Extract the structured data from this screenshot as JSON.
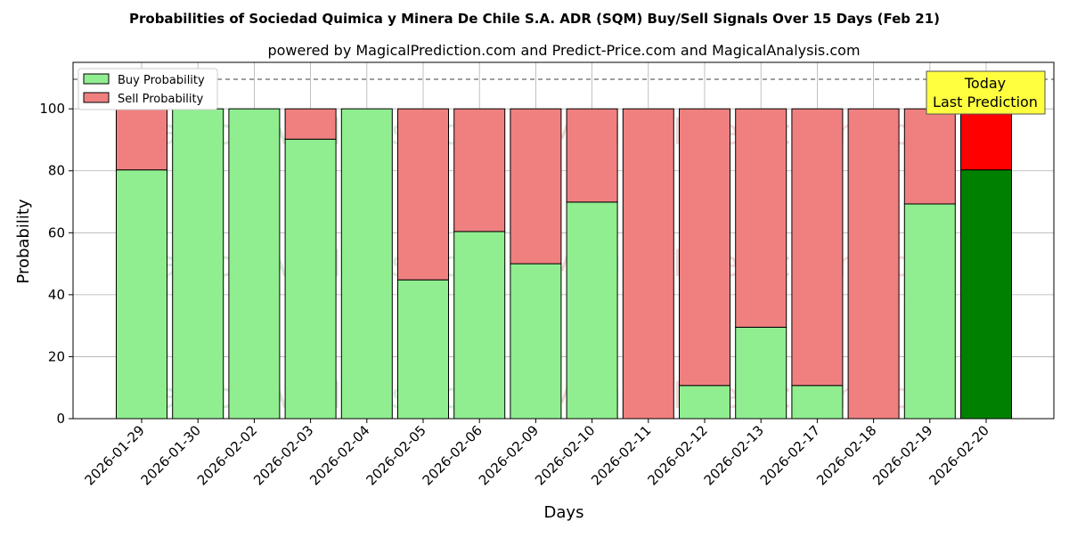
{
  "chart_data": {
    "type": "bar",
    "stacked": true,
    "title": "Probabilities of Sociedad Quimica y Minera De Chile S.A. ADR (SQM) Buy/Sell Signals Over 15 Days (Feb 21)",
    "subtitle": "powered by MagicalPrediction.com and Predict-Price.com and MagicalAnalysis.com",
    "xlabel": "Days",
    "ylabel": "Probability",
    "ylim": [
      0,
      115
    ],
    "yticks": [
      0,
      20,
      40,
      60,
      80,
      100
    ],
    "reference_line": 110,
    "categories": [
      "2026-01-29",
      "2026-01-30",
      "2026-02-02",
      "2026-02-03",
      "2026-02-04",
      "2026-02-05",
      "2026-02-06",
      "2026-02-09",
      "2026-02-10",
      "2026-02-11",
      "2026-02-12",
      "2026-02-13",
      "2026-02-17",
      "2026-02-18",
      "2026-02-19",
      "2026-02-20"
    ],
    "series": [
      {
        "name": "Buy Probability",
        "color": "#90ee90",
        "today_color": "#008000",
        "values": [
          80.3,
          100,
          100,
          90.2,
          100,
          44.8,
          60.4,
          50,
          69.9,
          0,
          10.7,
          29.5,
          10.7,
          0,
          69.3,
          80.3
        ]
      },
      {
        "name": "Sell Probability",
        "color": "#f08080",
        "today_color": "#ff0000",
        "values": [
          19.7,
          0,
          0,
          9.8,
          0,
          55.2,
          39.6,
          50,
          30.1,
          100,
          89.3,
          70.5,
          89.3,
          100,
          30.7,
          19.7
        ]
      }
    ],
    "legend": "top-left",
    "annotation": {
      "line1": "Today",
      "line2": "Last Prediction"
    },
    "watermarks": [
      "MagicalAnalysis.com",
      "MagicalPrediction.com"
    ],
    "grid": true
  }
}
